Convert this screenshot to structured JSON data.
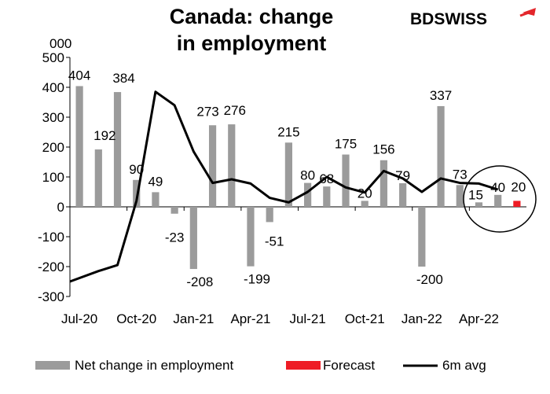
{
  "brand": {
    "name_part1": "BD",
    "name_part2": "SWISS",
    "color": "#e3262b"
  },
  "chart_data": {
    "type": "bar",
    "title_lines": [
      "Canada: change",
      "in employment"
    ],
    "unit_label": "000",
    "ylim": [
      -300,
      500
    ],
    "yticks": [
      -300,
      -200,
      -100,
      0,
      100,
      200,
      300,
      400,
      500
    ],
    "x_tick_labels": [
      "Jul-20",
      "Oct-20",
      "Jan-21",
      "Apr-21",
      "Jul-21",
      "Oct-21",
      "Jan-22",
      "Apr-22"
    ],
    "x_tick_every": 3,
    "categories": [
      "Jul-20",
      "Aug-20",
      "Sep-20",
      "Oct-20",
      "Nov-20",
      "Dec-20",
      "Jan-21",
      "Feb-21",
      "Mar-21",
      "Apr-21",
      "May-21",
      "Jun-21",
      "Jul-21",
      "Aug-21",
      "Sep-21",
      "Oct-21",
      "Nov-21",
      "Dec-21",
      "Jan-22",
      "Feb-22",
      "Mar-22",
      "Apr-22",
      "May-22",
      "Jun-22"
    ],
    "series": [
      {
        "name": "Net change in employment",
        "kind": "bar",
        "color": "#9b9b9b",
        "values": [
          404,
          192,
          384,
          90,
          49,
          -23,
          -208,
          273,
          276,
          -199,
          -51,
          215,
          80,
          68,
          175,
          20,
          156,
          79,
          -200,
          337,
          73,
          15,
          40,
          null
        ],
        "labels": [
          "404",
          "192",
          "384",
          "90",
          "49",
          "-23",
          "-208",
          "273",
          "276",
          "-199",
          "-51",
          "215",
          "80",
          "68",
          "175",
          "20",
          "156",
          "79",
          "-200",
          "337",
          "73",
          "15",
          "40",
          ""
        ]
      },
      {
        "name": "Forecast",
        "kind": "bar",
        "color": "#ee1c25",
        "values": [
          null,
          null,
          null,
          null,
          null,
          null,
          null,
          null,
          null,
          null,
          null,
          null,
          null,
          null,
          null,
          null,
          null,
          null,
          null,
          null,
          null,
          null,
          null,
          20
        ],
        "labels": [
          "",
          "",
          "",
          "",
          "",
          "",
          "",
          "",
          "",
          "",
          "",
          "",
          "",
          "",
          "",
          "",
          "",
          "",
          "",
          "",
          "",
          "",
          "",
          "20"
        ]
      },
      {
        "name": "6m avg",
        "kind": "line",
        "color": "#000000",
        "values": [
          -250,
          -215,
          -195,
          20,
          385,
          340,
          185,
          80,
          92,
          78,
          30,
          15,
          50,
          100,
          65,
          48,
          120,
          95,
          50,
          95,
          80,
          78,
          58,
          null
        ]
      }
    ],
    "annotation": "circle around May-22 and Jun-22",
    "legend_position": "bottom",
    "grid": false
  }
}
